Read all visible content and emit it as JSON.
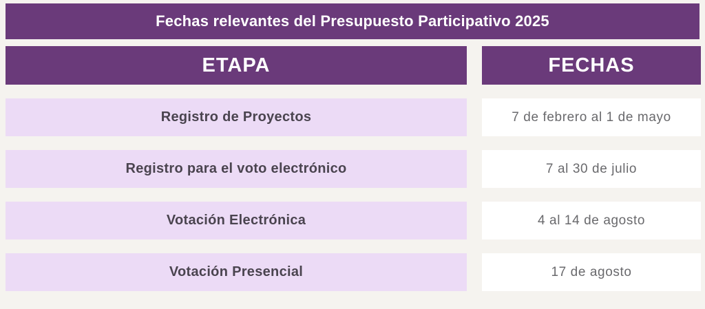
{
  "chart_data": {
    "type": "table",
    "title": "Fechas relevantes del Presupuesto Participativo 2025",
    "columns": [
      "ETAPA",
      "FECHAS"
    ],
    "rows": [
      [
        "Registro de Proyectos",
        "7 de febrero al 1 de mayo"
      ],
      [
        "Registro para el voto electrónico",
        "7 al 30 de julio"
      ],
      [
        "Votación Electrónica",
        "4 al 14 de agosto"
      ],
      [
        "Votación Presencial",
        "17 de agosto"
      ]
    ]
  },
  "colors": {
    "accent_purple": "#6a3a7a",
    "row_lavender": "#ecdbf6",
    "background": "#f5f3ef",
    "date_cell_white": "#ffffff",
    "stage_text": "#4a444f",
    "date_text": "#69696c",
    "header_text": "#ffffff"
  }
}
